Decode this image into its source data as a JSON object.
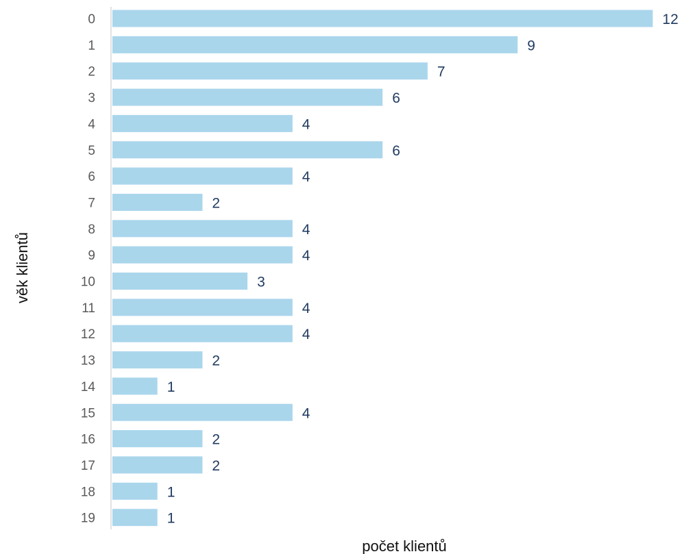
{
  "chart_data": {
    "type": "bar",
    "orientation": "horizontal",
    "categories": [
      "0",
      "1",
      "2",
      "3",
      "4",
      "5",
      "6",
      "7",
      "8",
      "9",
      "10",
      "11",
      "12",
      "13",
      "14",
      "15",
      "16",
      "17",
      "18",
      "19"
    ],
    "values": [
      12,
      9,
      7,
      6,
      4,
      6,
      4,
      2,
      4,
      4,
      3,
      4,
      4,
      2,
      1,
      4,
      2,
      2,
      1,
      1
    ],
    "xlabel": "počet klientů",
    "ylabel": "věk klientů",
    "xlim": [
      0,
      12
    ],
    "grid": false,
    "data_labels": true,
    "bar_color": "#aad6ec",
    "label_color": "#1f3a5f"
  }
}
